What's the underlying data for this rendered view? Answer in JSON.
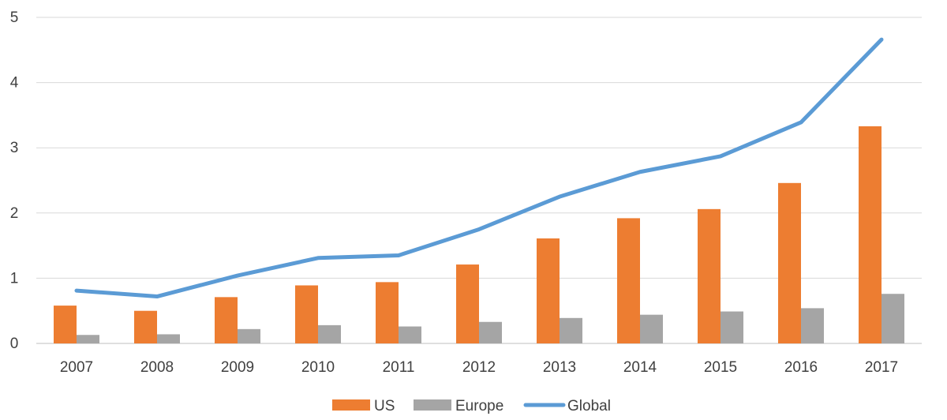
{
  "chart_data": {
    "type": "bar",
    "title": "",
    "xlabel": "",
    "ylabel": "",
    "categories": [
      "2007",
      "2008",
      "2009",
      "2010",
      "2011",
      "2012",
      "2013",
      "2014",
      "2015",
      "2016",
      "2017"
    ],
    "ylim": [
      0,
      5
    ],
    "yticks": [
      "0",
      "1",
      "2",
      "3",
      "4",
      "5"
    ],
    "grid": true,
    "legend_position": "bottom",
    "series": [
      {
        "name": "US",
        "kind": "bar",
        "color": "#ED7D31",
        "values": [
          0.58,
          0.5,
          0.71,
          0.89,
          0.94,
          1.21,
          1.61,
          1.92,
          2.06,
          2.46,
          3.33
        ]
      },
      {
        "name": "Europe",
        "kind": "bar",
        "color": "#A5A5A5",
        "values": [
          0.13,
          0.14,
          0.22,
          0.28,
          0.26,
          0.33,
          0.39,
          0.44,
          0.49,
          0.54,
          0.76
        ]
      },
      {
        "name": "Global",
        "kind": "line",
        "color": "#5B9BD5",
        "values": [
          0.81,
          0.72,
          1.04,
          1.31,
          1.35,
          1.75,
          2.25,
          2.63,
          2.87,
          3.39,
          4.66
        ]
      }
    ]
  }
}
